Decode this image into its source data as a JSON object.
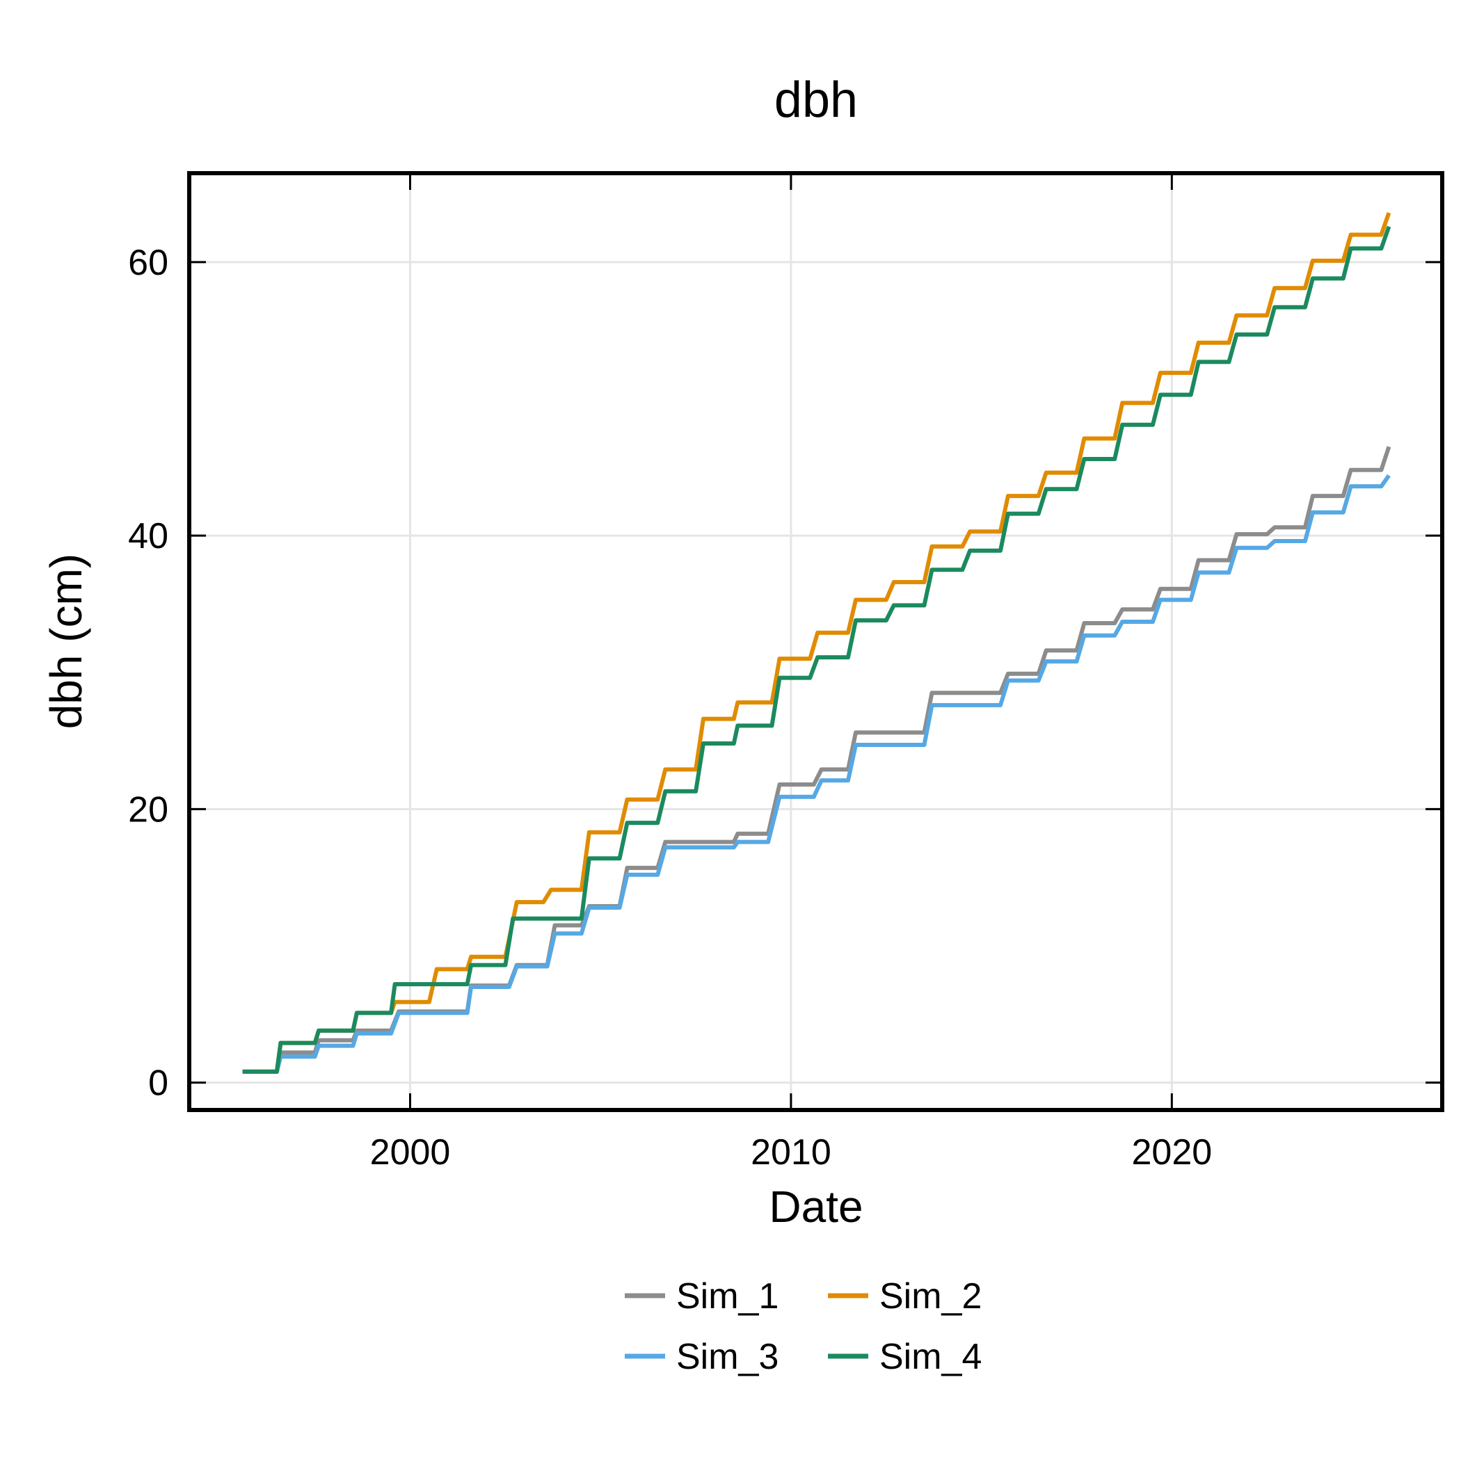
{
  "chart_data": {
    "type": "line",
    "title": "dbh",
    "xlabel": "Date",
    "ylabel": "dbh (cm)",
    "xlim": [
      1994.2,
      2027.1
    ],
    "ylim": [
      -2,
      66.5
    ],
    "x_ticks": [
      {
        "value": 2000,
        "label": "2000"
      },
      {
        "value": 2010,
        "label": "2010"
      },
      {
        "value": 2020,
        "label": "2020"
      }
    ],
    "y_ticks": [
      {
        "value": 0,
        "label": "0"
      },
      {
        "value": 20,
        "label": "20"
      },
      {
        "value": 40,
        "label": "40"
      },
      {
        "value": 60,
        "label": "60"
      }
    ],
    "grid": true,
    "legend_position": "bottom",
    "series": [
      {
        "name": "Sim_1",
        "color": "#8C8C8C",
        "x": [
          1995.6,
          1996.5,
          1996.6,
          1997.5,
          1997.6,
          1998.5,
          1998.6,
          1999.5,
          1999.7,
          2001.5,
          2001.6,
          2002.6,
          2002.8,
          2003.6,
          2003.8,
          2004.5,
          2004.7,
          2005.5,
          2005.7,
          2006.5,
          2006.7,
          2008.5,
          2008.6,
          2009.4,
          2009.7,
          2010.6,
          2010.8,
          2011.5,
          2011.7,
          2013.5,
          2013.7,
          2015.5,
          2015.7,
          2016.5,
          2016.7,
          2017.5,
          2017.7,
          2018.5,
          2018.7,
          2019.5,
          2019.7,
          2020.5,
          2020.7,
          2021.5,
          2021.7,
          2022.5,
          2022.7,
          2023.5,
          2023.7,
          2024.5,
          2024.7,
          2025.5,
          2025.7
        ],
        "y": [
          0.8,
          0.8,
          2.2,
          2.2,
          3.1,
          3.1,
          3.8,
          3.8,
          5.2,
          5.2,
          7.1,
          7.1,
          8.6,
          8.6,
          11.5,
          11.5,
          12.9,
          12.9,
          15.7,
          15.7,
          17.6,
          17.6,
          18.2,
          18.2,
          21.8,
          21.8,
          22.9,
          22.9,
          25.6,
          25.6,
          28.5,
          28.5,
          29.9,
          29.9,
          31.6,
          31.6,
          33.6,
          33.6,
          34.6,
          34.6,
          36.1,
          36.1,
          38.2,
          38.2,
          40.1,
          40.1,
          40.6,
          40.6,
          42.9,
          42.9,
          44.8,
          44.8,
          46.5
        ]
      },
      {
        "name": "Sim_2",
        "color": "#E08B00",
        "x": [
          1995.6,
          1996.5,
          1996.6,
          1997.5,
          1997.6,
          1998.5,
          1998.6,
          1999.5,
          1999.6,
          2000.5,
          2000.7,
          2001.5,
          2001.6,
          2002.5,
          2002.8,
          2003.5,
          2003.7,
          2004.5,
          2004.7,
          2005.5,
          2005.7,
          2006.5,
          2006.7,
          2007.5,
          2007.7,
          2008.5,
          2008.6,
          2009.5,
          2009.7,
          2010.5,
          2010.7,
          2011.5,
          2011.7,
          2012.5,
          2012.7,
          2013.5,
          2013.7,
          2014.5,
          2014.7,
          2015.5,
          2015.7,
          2016.5,
          2016.7,
          2017.5,
          2017.7,
          2018.5,
          2018.7,
          2019.5,
          2019.7,
          2020.5,
          2020.7,
          2021.5,
          2021.7,
          2022.5,
          2022.7,
          2023.5,
          2023.7,
          2024.5,
          2024.7,
          2025.5,
          2025.7
        ],
        "y": [
          0.8,
          0.8,
          2.9,
          2.9,
          3.8,
          3.8,
          5.1,
          5.1,
          5.9,
          5.9,
          8.3,
          8.3,
          9.2,
          9.2,
          13.2,
          13.2,
          14.1,
          14.1,
          18.3,
          18.3,
          20.7,
          20.7,
          22.9,
          22.9,
          26.6,
          26.6,
          27.8,
          27.8,
          31.0,
          31.0,
          32.9,
          32.9,
          35.3,
          35.3,
          36.6,
          36.6,
          39.2,
          39.2,
          40.3,
          40.3,
          42.9,
          42.9,
          44.6,
          44.6,
          47.1,
          47.1,
          49.7,
          49.7,
          51.9,
          51.9,
          54.1,
          54.1,
          56.1,
          56.1,
          58.1,
          58.1,
          60.1,
          60.1,
          62.0,
          62.0,
          63.6
        ]
      },
      {
        "name": "Sim_3",
        "color": "#56A8E4",
        "x": [
          1995.6,
          1996.5,
          1996.6,
          1997.5,
          1997.6,
          1998.5,
          1998.6,
          1999.5,
          1999.7,
          2001.5,
          2001.6,
          2002.6,
          2002.8,
          2003.6,
          2003.8,
          2004.5,
          2004.7,
          2005.5,
          2005.7,
          2006.5,
          2006.7,
          2008.5,
          2008.6,
          2009.4,
          2009.7,
          2010.6,
          2010.8,
          2011.5,
          2011.7,
          2013.5,
          2013.7,
          2015.5,
          2015.7,
          2016.5,
          2016.7,
          2017.5,
          2017.7,
          2018.5,
          2018.7,
          2019.5,
          2019.7,
          2020.5,
          2020.7,
          2021.5,
          2021.7,
          2022.5,
          2022.7,
          2023.5,
          2023.7,
          2024.5,
          2024.7,
          2025.5,
          2025.7
        ],
        "y": [
          0.8,
          0.8,
          1.9,
          1.9,
          2.7,
          2.7,
          3.6,
          3.6,
          5.1,
          5.1,
          7.0,
          7.0,
          8.5,
          8.5,
          10.9,
          10.9,
          12.8,
          12.8,
          15.2,
          15.2,
          17.2,
          17.2,
          17.6,
          17.6,
          20.9,
          20.9,
          22.1,
          22.1,
          24.7,
          24.7,
          27.6,
          27.6,
          29.4,
          29.4,
          30.8,
          30.8,
          32.7,
          32.7,
          33.7,
          33.7,
          35.3,
          35.3,
          37.3,
          37.3,
          39.1,
          39.1,
          39.6,
          39.6,
          41.7,
          41.7,
          43.6,
          43.6,
          44.4
        ]
      },
      {
        "name": "Sim_4",
        "color": "#1B8A5E",
        "x": [
          1995.6,
          1996.5,
          1996.6,
          1997.5,
          1997.6,
          1998.5,
          1998.6,
          1999.5,
          1999.6,
          2001.5,
          2001.6,
          2002.5,
          2002.7,
          2004.5,
          2004.7,
          2005.5,
          2005.7,
          2006.5,
          2006.7,
          2007.5,
          2007.7,
          2008.5,
          2008.6,
          2009.5,
          2009.7,
          2010.5,
          2010.7,
          2011.5,
          2011.7,
          2012.5,
          2012.7,
          2013.5,
          2013.7,
          2014.5,
          2014.7,
          2015.5,
          2015.7,
          2016.5,
          2016.7,
          2017.5,
          2017.7,
          2018.5,
          2018.7,
          2019.5,
          2019.7,
          2020.5,
          2020.7,
          2021.5,
          2021.7,
          2022.5,
          2022.7,
          2023.5,
          2023.7,
          2024.5,
          2024.7,
          2025.5,
          2025.7
        ],
        "y": [
          0.8,
          0.8,
          2.9,
          2.9,
          3.8,
          3.8,
          5.1,
          5.1,
          7.2,
          7.2,
          8.6,
          8.6,
          12.0,
          12.0,
          16.4,
          16.4,
          19.0,
          19.0,
          21.3,
          21.3,
          24.8,
          24.8,
          26.1,
          26.1,
          29.6,
          29.6,
          31.1,
          31.1,
          33.8,
          33.8,
          34.9,
          34.9,
          37.5,
          37.5,
          38.9,
          38.9,
          41.6,
          41.6,
          43.4,
          43.4,
          45.6,
          45.6,
          48.1,
          48.1,
          50.3,
          50.3,
          52.7,
          52.7,
          54.7,
          54.7,
          56.7,
          56.7,
          58.8,
          58.8,
          61.0,
          61.0,
          62.6
        ]
      }
    ]
  }
}
